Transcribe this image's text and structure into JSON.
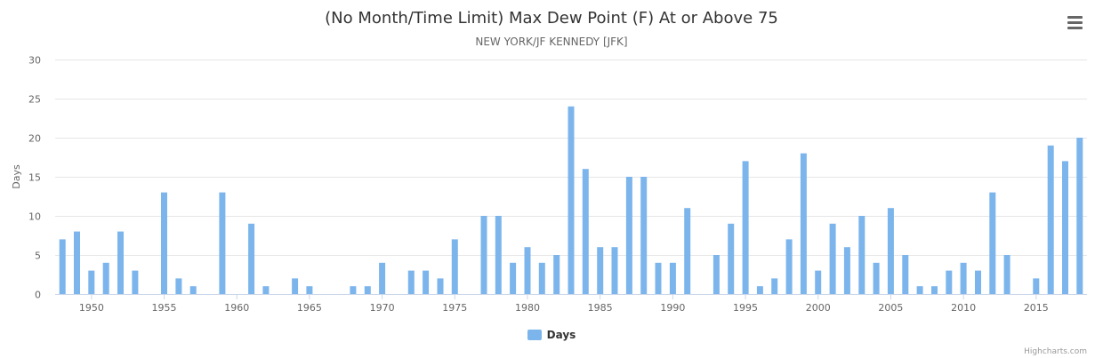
{
  "menu": {
    "icon": "hamburger-menu-icon"
  },
  "credits": "Highcharts.com",
  "colors": {
    "series": "#7cb5ec",
    "grid": "#e6e6e6",
    "axis_line": "#ccd6eb",
    "label": "#666666"
  },
  "chart_data": {
    "type": "bar",
    "title": "(No Month/Time Limit) Max Dew Point (F) At or Above 75",
    "subtitle": "NEW YORK/JF KENNEDY [JFK]",
    "xlabel": "",
    "ylabel": "Days",
    "ylim": [
      0,
      30
    ],
    "yticks": [
      0,
      5,
      10,
      15,
      20,
      25,
      30
    ],
    "xlim": [
      1947.5,
      2018.5
    ],
    "xticks": [
      1950,
      1955,
      1960,
      1965,
      1970,
      1975,
      1980,
      1985,
      1990,
      1995,
      2000,
      2005,
      2010,
      2015
    ],
    "grid": true,
    "legend": "bottom-center",
    "series": [
      {
        "name": "Days",
        "x": [
          1948,
          1949,
          1950,
          1951,
          1952,
          1953,
          1955,
          1956,
          1957,
          1959,
          1961,
          1962,
          1964,
          1965,
          1968,
          1969,
          1970,
          1972,
          1973,
          1974,
          1975,
          1977,
          1978,
          1979,
          1980,
          1981,
          1982,
          1983,
          1984,
          1985,
          1986,
          1987,
          1988,
          1989,
          1990,
          1991,
          1993,
          1994,
          1995,
          1996,
          1997,
          1998,
          1999,
          2000,
          2001,
          2002,
          2003,
          2004,
          2005,
          2006,
          2007,
          2008,
          2009,
          2010,
          2011,
          2012,
          2013,
          2015,
          2016,
          2017,
          2018
        ],
        "values": [
          7,
          8,
          3,
          4,
          8,
          3,
          13,
          2,
          1,
          13,
          9,
          1,
          2,
          1,
          1,
          1,
          4,
          3,
          3,
          2,
          7,
          10,
          10,
          4,
          6,
          4,
          5,
          24,
          16,
          6,
          6,
          15,
          15,
          4,
          4,
          11,
          5,
          9,
          17,
          1,
          2,
          7,
          18,
          3,
          9,
          6,
          10,
          4,
          11,
          5,
          1,
          1,
          3,
          4,
          3,
          13,
          5,
          2,
          19,
          17,
          20
        ]
      }
    ]
  }
}
